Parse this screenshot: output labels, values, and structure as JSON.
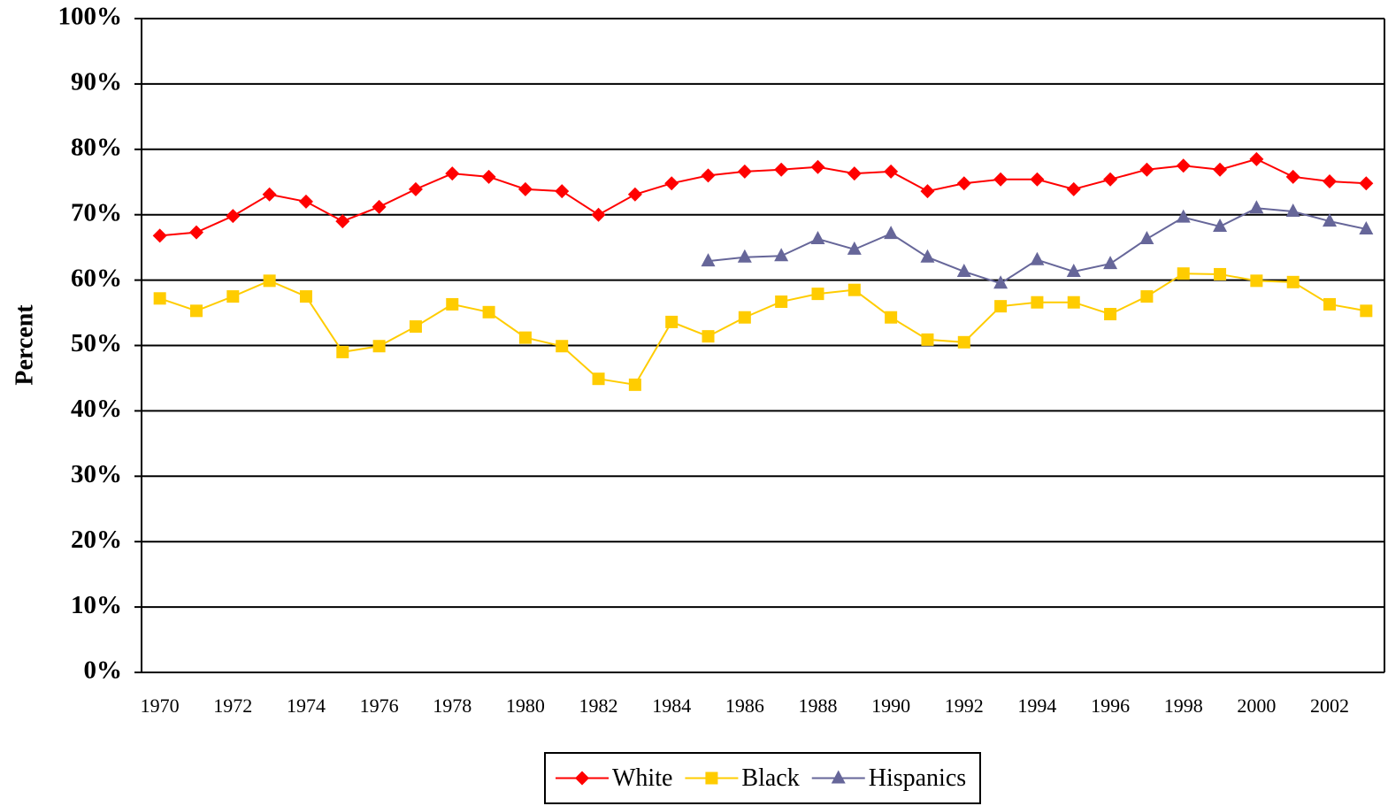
{
  "chart_data": {
    "type": "line",
    "y_label": "Percent",
    "categories": [
      "1970",
      null,
      "1972",
      null,
      "1974",
      null,
      "1976",
      null,
      "1978",
      null,
      "1980",
      null,
      "1982",
      null,
      "1984",
      null,
      "1986",
      null,
      "1988",
      null,
      "1990",
      null,
      "1992",
      null,
      "1994",
      null,
      "1996",
      null,
      "1998",
      null,
      "2000",
      null,
      "2002",
      null
    ],
    "series": [
      {
        "name": "White",
        "color": "#ff0000",
        "marker": "diamond",
        "values": [
          66.8,
          67.3,
          69.8,
          73.1,
          72.0,
          69.0,
          71.2,
          73.9,
          76.3,
          75.8,
          73.9,
          73.6,
          70.0,
          73.1,
          74.8,
          76.0,
          76.6,
          76.9,
          77.3,
          76.3,
          76.6,
          73.6,
          74.8,
          75.4,
          75.4,
          73.9,
          75.4,
          76.9,
          77.5,
          76.9,
          78.5,
          75.8,
          75.1,
          74.8
        ]
      },
      {
        "name": "Black",
        "color": "#ffcc00",
        "marker": "square",
        "values": [
          57.2,
          55.3,
          57.5,
          59.9,
          57.5,
          49.0,
          49.9,
          52.9,
          56.3,
          55.1,
          51.2,
          49.9,
          44.9,
          44.0,
          53.6,
          51.4,
          54.3,
          56.7,
          57.9,
          58.5,
          54.3,
          50.9,
          50.5,
          56.0,
          56.6,
          56.6,
          54.8,
          57.5,
          61.0,
          60.9,
          59.9,
          59.7,
          56.3,
          55.3
        ]
      },
      {
        "name": "Hispanics",
        "color": "#666699",
        "marker": "triangle",
        "values": [
          null,
          null,
          null,
          null,
          null,
          null,
          null,
          null,
          null,
          null,
          null,
          null,
          null,
          null,
          null,
          62.9,
          63.5,
          63.7,
          66.3,
          64.7,
          67.1,
          63.5,
          61.3,
          59.5,
          63.1,
          61.3,
          62.5,
          66.3,
          69.6,
          68.2,
          71.0,
          70.5,
          69.0,
          67.8
        ]
      }
    ],
    "ylim": [
      0,
      100
    ],
    "yticks": [
      {
        "value": 0,
        "label": "0%"
      },
      {
        "value": 10,
        "label": "10%"
      },
      {
        "value": 20,
        "label": "20%"
      },
      {
        "value": 30,
        "label": "30%"
      },
      {
        "value": 40,
        "label": "40%"
      },
      {
        "value": 50,
        "label": "50%"
      },
      {
        "value": 60,
        "label": "60%"
      },
      {
        "value": 70,
        "label": "70%"
      },
      {
        "value": 80,
        "label": "80%"
      },
      {
        "value": 90,
        "label": "90%"
      },
      {
        "value": 100,
        "label": "100%"
      }
    ],
    "grid": true,
    "legend": "bottom"
  }
}
